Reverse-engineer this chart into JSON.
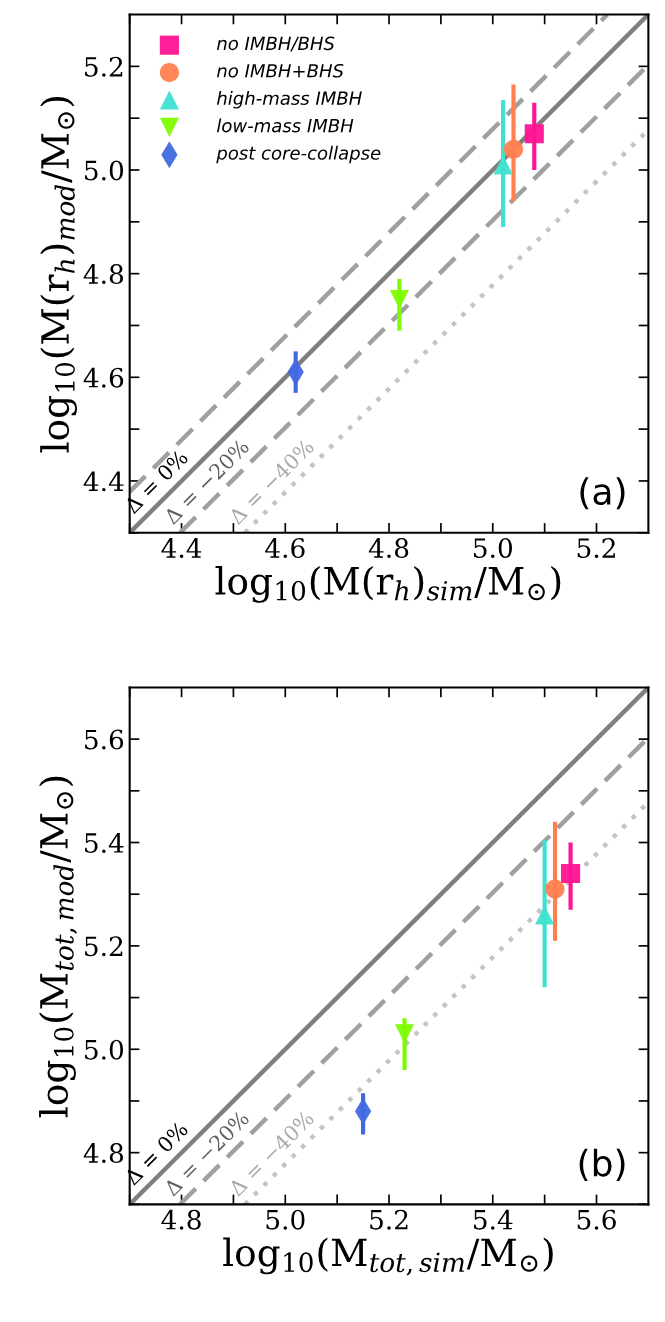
{
  "chart_data": [
    {
      "type": "scatter",
      "xlabel": "log$_{10}$(M(r$_{h}$)$_{sim}$/M$_{⊙}$)",
      "ylabel": "log$_{10}$(M(r$_{h}$)$_{mod}$/M$_{⊙}$)",
      "xlim": [
        4.3,
        5.3
      ],
      "ylim": [
        4.3,
        5.3
      ],
      "xticks": [
        {
          "value": 4.3,
          "label": null
        },
        4.4,
        {
          "value": 4.5,
          "label": null
        },
        4.6,
        {
          "value": 4.7,
          "label": null
        },
        4.8,
        {
          "value": 4.9,
          "label": null
        },
        {
          "value": 5.0,
          "label": "5.0"
        },
        {
          "value": 5.1,
          "label": null
        },
        5.2
      ],
      "yticks": [
        {
          "value": 4.3,
          "label": null
        },
        4.4,
        {
          "value": 4.5,
          "label": null
        },
        4.6,
        {
          "value": 4.7,
          "label": null
        },
        4.8,
        {
          "value": 4.9,
          "label": null
        },
        {
          "value": 5.0,
          "label": "5.0"
        },
        {
          "value": 5.1,
          "label": null
        },
        5.2
      ],
      "legend": "top left",
      "grid": false,
      "series": [
        {
          "type": "line",
          "color": "#7f7f7f",
          "line_style": "solid",
          "x": [
            4.3,
            5.3
          ],
          "values": [
            4.3,
            5.3
          ]
        },
        {
          "type": "line",
          "color": "#a0a0a0",
          "line_style": "dashed",
          "x": [
            4.397,
            5.3
          ],
          "values": [
            4.3,
            5.203
          ]
        },
        {
          "type": "line",
          "color": "#c4c4c4",
          "line_style": "dotted",
          "x": [
            4.522,
            5.3
          ],
          "values": [
            4.3,
            5.078
          ]
        },
        {
          "type": "line",
          "color": "#a0a0a0",
          "line_style": "dashed",
          "x": [
            4.3,
            5.221
          ],
          "values": [
            4.379,
            5.3
          ]
        },
        {
          "name": "no IMBH/BHS",
          "color": "#ff1493",
          "marker": "square",
          "x": [
            5.08
          ],
          "values": [
            5.07
          ],
          "errors": [
            [
              5.0,
              5.13
            ]
          ]
        },
        {
          "name": "no IMBH+BHS",
          "color": "#ff7f50",
          "marker": "circle",
          "x": [
            5.04
          ],
          "values": [
            5.04
          ],
          "errors": [
            [
              4.94,
              5.165
            ]
          ]
        },
        {
          "name": "high-mass IMBH",
          "color": "#40e0d0",
          "marker": "triangle",
          "x": [
            5.02
          ],
          "values": [
            5.01
          ],
          "errors": [
            [
              4.89,
              5.135
            ]
          ]
        },
        {
          "name": "low-mass IMBH",
          "color": "#7cfc00",
          "marker": "triangle_down",
          "x": [
            4.82
          ],
          "values": [
            4.75
          ],
          "errors": [
            [
              4.69,
              4.79
            ]
          ]
        },
        {
          "name": "post core-collapse",
          "color": "#4169e1",
          "marker": "diamond",
          "x": [
            4.62
          ],
          "values": [
            4.61
          ],
          "errors": [
            [
              4.57,
              4.65
            ]
          ]
        }
      ],
      "annotations": [
        "Δ = 0%",
        "Δ = −20%",
        "Δ = −40%",
        "(a)"
      ]
    },
    {
      "type": "scatter",
      "xlabel": "log$_{10}$(M$_{tot,sim}$/M$_{⊙}$)",
      "ylabel": "log$_{10}$(M$_{tot,mod}$/M$_{⊙}$)",
      "xlim": [
        4.7,
        5.7
      ],
      "ylim": [
        4.7,
        5.7
      ],
      "xticks": [
        {
          "value": 4.7,
          "label": null
        },
        4.8,
        {
          "value": 4.9,
          "label": null
        },
        {
          "value": 5.0,
          "label": "5.0"
        },
        {
          "value": 5.1,
          "label": null
        },
        5.2,
        {
          "value": 5.3,
          "label": null
        },
        5.4,
        {
          "value": 5.5,
          "label": null
        },
        5.6
      ],
      "yticks": [
        {
          "value": 4.7,
          "label": null
        },
        4.8,
        {
          "value": 4.9,
          "label": null
        },
        {
          "value": 5.0,
          "label": "5.0"
        },
        {
          "value": 5.1,
          "label": null
        },
        5.2,
        {
          "value": 5.3,
          "label": null
        },
        5.4,
        {
          "value": 5.5,
          "label": null
        },
        5.6
      ],
      "grid": false,
      "series": [
        {
          "type": "line",
          "color": "#7f7f7f",
          "line_style": "solid",
          "x": [
            4.7,
            5.7
          ],
          "values": [
            4.7,
            5.7
          ]
        },
        {
          "type": "line",
          "color": "#a0a0a0",
          "line_style": "dashed",
          "x": [
            4.797,
            5.7
          ],
          "values": [
            4.7,
            5.603
          ]
        },
        {
          "type": "line",
          "color": "#c4c4c4",
          "line_style": "dotted",
          "x": [
            4.922,
            5.7
          ],
          "values": [
            4.7,
            5.478
          ]
        },
        {
          "color": "#ff1493",
          "marker": "square",
          "x": [
            5.55
          ],
          "values": [
            5.34
          ],
          "errors": [
            [
              5.27,
              5.4
            ]
          ]
        },
        {
          "color": "#ff7f50",
          "marker": "circle",
          "x": [
            5.52
          ],
          "values": [
            5.31
          ],
          "errors": [
            [
              5.21,
              5.44
            ]
          ]
        },
        {
          "color": "#40e0d0",
          "marker": "triangle",
          "x": [
            5.5
          ],
          "values": [
            5.26
          ],
          "errors": [
            [
              5.12,
              5.405
            ]
          ]
        },
        {
          "color": "#7cfc00",
          "marker": "triangle_down",
          "x": [
            5.23
          ],
          "values": [
            5.03
          ],
          "errors": [
            [
              4.96,
              5.06
            ]
          ]
        },
        {
          "color": "#4169e1",
          "marker": "diamond",
          "x": [
            5.15
          ],
          "values": [
            4.88
          ],
          "errors": [
            [
              4.835,
              4.915
            ]
          ]
        }
      ],
      "annotations": [
        "Δ = 0%",
        "Δ = −20%",
        "Δ = −40%",
        "(b)"
      ]
    }
  ]
}
